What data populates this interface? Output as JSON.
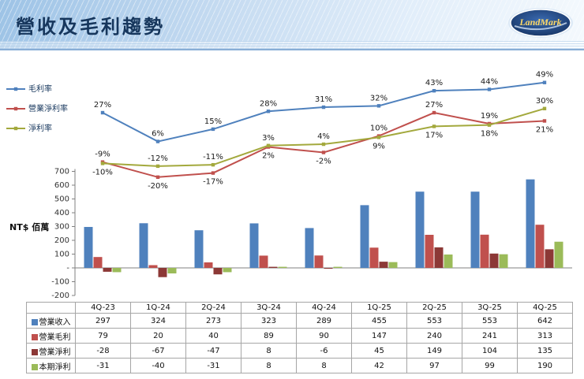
{
  "header": {
    "title": "營收及毛利趨勢",
    "logo_text": "LandMark"
  },
  "chart_data": {
    "type": "combo-bar-line",
    "unit_label": "NT$ 佰萬",
    "categories": [
      "4Q-23",
      "1Q-24",
      "2Q-24",
      "3Q-24",
      "4Q-24",
      "1Q-25",
      "2Q-25",
      "3Q-25",
      "4Q-25"
    ],
    "y_ticks": [
      700,
      600,
      500,
      400,
      300,
      200,
      100,
      "-",
      -100,
      -200
    ],
    "y_axis_range": [
      -200,
      700
    ],
    "grid": false,
    "legend_position": "left",
    "bar_series": [
      {
        "name": "營業收入",
        "color": "#4f81bd",
        "values": [
          297,
          324,
          273,
          323,
          289,
          455,
          553,
          553,
          642
        ]
      },
      {
        "name": "營業毛利",
        "color": "#c0504d",
        "values": [
          79,
          20,
          40,
          89,
          90,
          147,
          240,
          241,
          313
        ]
      },
      {
        "name": "營業淨利",
        "color": "#8c3836",
        "values": [
          -28,
          -67,
          -47,
          8,
          -6,
          45,
          149,
          104,
          135
        ]
      },
      {
        "name": "本期淨利",
        "color": "#9bbb59",
        "values": [
          -31,
          -40,
          -31,
          8,
          8,
          42,
          97,
          99,
          190
        ]
      }
    ],
    "line_series": [
      {
        "name": "毛利率",
        "color": "#4f81bd",
        "values": [
          27,
          6,
          15,
          28,
          31,
          32,
          43,
          44,
          49
        ],
        "label_suffix": "%"
      },
      {
        "name": "營業淨利率",
        "color": "#c0504d",
        "values": [
          -9,
          -20,
          -17,
          2,
          -2,
          10,
          27,
          19,
          21
        ],
        "label_suffix": "%"
      },
      {
        "name": "淨利率",
        "color": "#a3a93d",
        "values": [
          -10,
          -12,
          -11,
          3,
          4,
          9,
          17,
          18,
          30
        ],
        "label_suffix": "%"
      }
    ]
  },
  "colors": {
    "header_text": "#16365c",
    "logo_fill": "#1f3f77",
    "logo_text_color": "#ffd966",
    "axis_line": "#808080",
    "label_text": "#1a1a1a"
  }
}
